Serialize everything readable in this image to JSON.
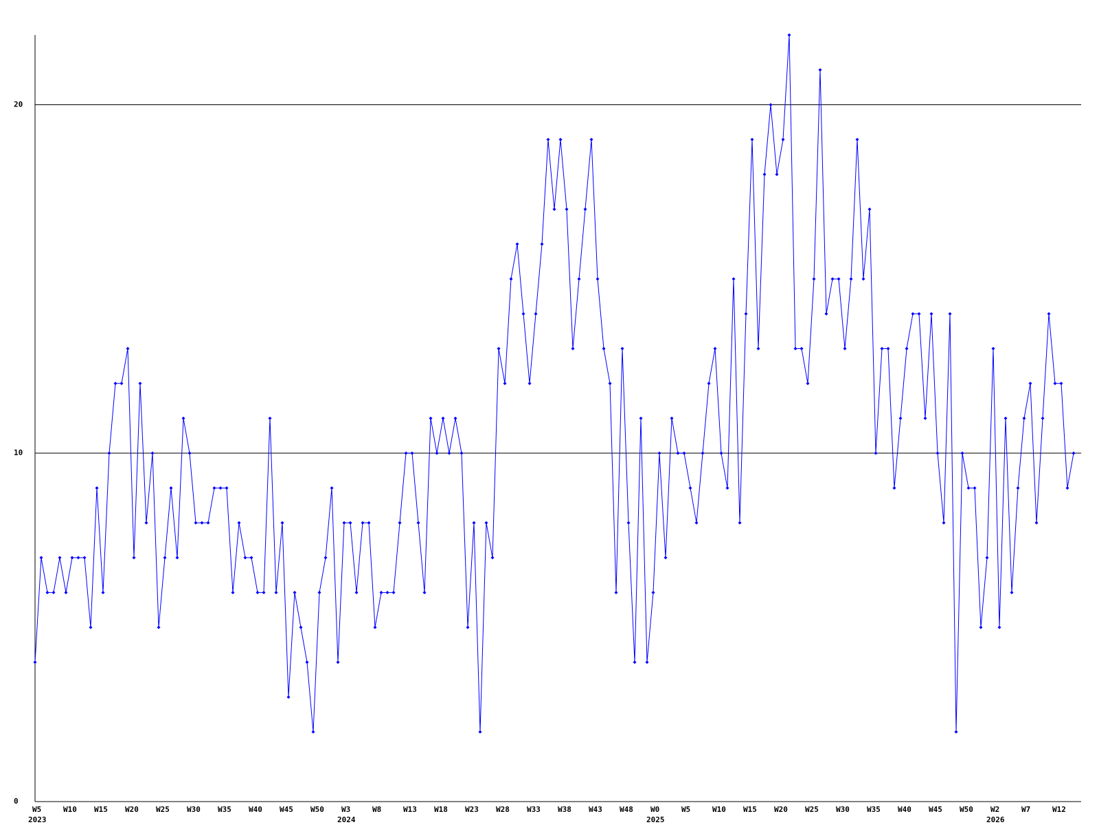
{
  "chart_data": {
    "type": "line",
    "color": "#0000ff",
    "grid": true,
    "ylim": [
      0,
      22
    ],
    "yticks": [
      0,
      10,
      20
    ],
    "categories": [
      "W5",
      null,
      null,
      null,
      null,
      "W10",
      null,
      null,
      null,
      null,
      "W15",
      null,
      null,
      null,
      null,
      "W20",
      null,
      null,
      null,
      null,
      "W25",
      null,
      null,
      null,
      null,
      "W30",
      null,
      null,
      null,
      null,
      "W35",
      null,
      null,
      null,
      null,
      "W40",
      null,
      null,
      null,
      null,
      "W45",
      null,
      null,
      null,
      null,
      "W50",
      null,
      null,
      null,
      null,
      "W3",
      null,
      null,
      null,
      null,
      "W8",
      null,
      null,
      null,
      null,
      "W13",
      null,
      null,
      null,
      null,
      "W18",
      null,
      null,
      null,
      null,
      "W23",
      null,
      null,
      null,
      null,
      "W28",
      null,
      null,
      null,
      null,
      "W33",
      null,
      null,
      null,
      null,
      "W38",
      null,
      null,
      null,
      null,
      "W43",
      null,
      null,
      null,
      null,
      "W48",
      null,
      null,
      null,
      null,
      "W0",
      null,
      null,
      null,
      null,
      "W5",
      null,
      null,
      null,
      null,
      "W10",
      null,
      null,
      null,
      null,
      "W15",
      null,
      null,
      null,
      null,
      "W20",
      null,
      null,
      null,
      null,
      "W25",
      null,
      null,
      null,
      null,
      "W30",
      null,
      null,
      null,
      null,
      "W35",
      null,
      null,
      null,
      null,
      "W40",
      null,
      null,
      null,
      null,
      "W45",
      null,
      null,
      null,
      null,
      "W50",
      null,
      null,
      null,
      null,
      "W2",
      null,
      null,
      null,
      null,
      "W7",
      null,
      null,
      null,
      null,
      "W12",
      null,
      null,
      null
    ],
    "category_years": [
      "2023",
      null,
      null,
      null,
      null,
      null,
      null,
      null,
      null,
      null,
      null,
      null,
      null,
      null,
      null,
      null,
      null,
      null,
      null,
      null,
      null,
      null,
      null,
      null,
      null,
      null,
      null,
      null,
      null,
      null,
      null,
      null,
      null,
      null,
      null,
      null,
      null,
      null,
      null,
      null,
      null,
      null,
      null,
      null,
      null,
      null,
      null,
      null,
      null,
      null,
      "2024",
      null,
      null,
      null,
      null,
      null,
      null,
      null,
      null,
      null,
      null,
      null,
      null,
      null,
      null,
      null,
      null,
      null,
      null,
      null,
      null,
      null,
      null,
      null,
      null,
      null,
      null,
      null,
      null,
      null,
      null,
      null,
      null,
      null,
      null,
      null,
      null,
      null,
      null,
      null,
      null,
      null,
      null,
      null,
      null,
      null,
      null,
      null,
      null,
      null,
      "2025",
      null,
      null,
      null,
      null,
      null,
      null,
      null,
      null,
      null,
      null,
      null,
      null,
      null,
      null,
      null,
      null,
      null,
      null,
      null,
      null,
      null,
      null,
      null,
      null,
      null,
      null,
      null,
      null,
      null,
      null,
      null,
      null,
      null,
      null,
      null,
      null,
      null,
      null,
      null,
      null,
      null,
      null,
      null,
      null,
      null,
      null,
      null,
      null,
      null,
      null,
      null,
      null,
      null,
      null,
      "2026",
      null,
      null,
      null,
      null,
      null,
      null,
      null,
      null,
      null,
      null,
      null,
      null,
      null
    ],
    "values": [
      4,
      7,
      6,
      6,
      7,
      6,
      7,
      7,
      7,
      5,
      9,
      6,
      10,
      12,
      12,
      13,
      7,
      12,
      8,
      10,
      5,
      7,
      9,
      7,
      11,
      10,
      8,
      8,
      8,
      9,
      9,
      9,
      6,
      8,
      7,
      7,
      6,
      6,
      11,
      6,
      8,
      3,
      6,
      5,
      4,
      2,
      6,
      7,
      9,
      4,
      8,
      8,
      6,
      8,
      8,
      5,
      6,
      6,
      6,
      8,
      10,
      10,
      8,
      6,
      11,
      10,
      11,
      10,
      11,
      10,
      5,
      8,
      2,
      8,
      7,
      13,
      12,
      15,
      16,
      14,
      12,
      14,
      16,
      19,
      17,
      19,
      17,
      13,
      15,
      17,
      19,
      15,
      13,
      12,
      6,
      13,
      8,
      4,
      11,
      4,
      6,
      10,
      7,
      11,
      10,
      10,
      9,
      8,
      10,
      12,
      13,
      10,
      9,
      15,
      8,
      14,
      19,
      13,
      18,
      20,
      18,
      19,
      22,
      13,
      13,
      12,
      15,
      21,
      14,
      15,
      15,
      13,
      15,
      19,
      15,
      17,
      10,
      13,
      13,
      9,
      11,
      13,
      14,
      14,
      11,
      14,
      10,
      8,
      14,
      2,
      10,
      9,
      9,
      5,
      7,
      13,
      5,
      11,
      6,
      9,
      11,
      12,
      8,
      11,
      14,
      12,
      12,
      9,
      10
    ]
  }
}
